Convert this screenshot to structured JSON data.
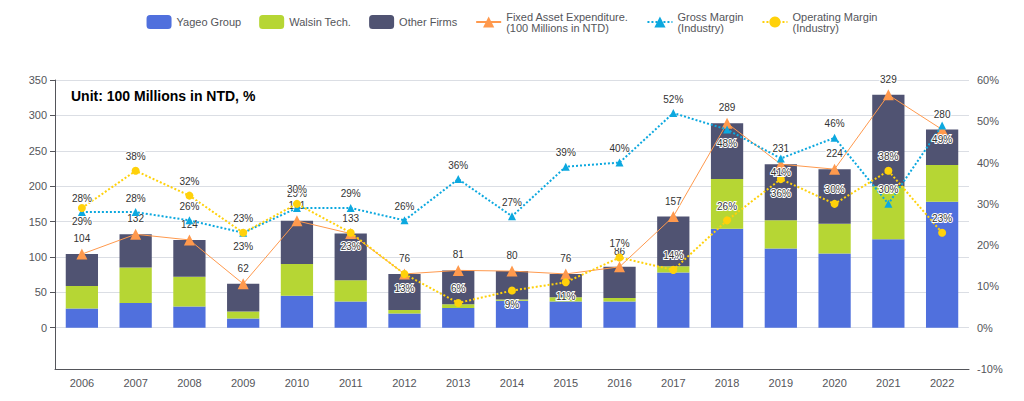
{
  "chart_data": {
    "type": "bar",
    "title": "Unit: 100 Millions in NTD, %",
    "categories": [
      "2006",
      "2007",
      "2008",
      "2009",
      "2010",
      "2011",
      "2012",
      "2013",
      "2014",
      "2015",
      "2016",
      "2017",
      "2018",
      "2019",
      "2020",
      "2021",
      "2022"
    ],
    "stacked": true,
    "grid": true,
    "legend": "top",
    "ylim": [
      -58.33333333333333,
      350
    ],
    "yticks": [
      0,
      50,
      100,
      150,
      200,
      250,
      300,
      350
    ],
    "y2lim": [
      -10,
      60
    ],
    "y2ticks": [
      {
        "value": -10,
        "label": "-10%"
      },
      {
        "value": 0,
        "label": "0%"
      },
      {
        "value": 10,
        "label": "10%"
      },
      {
        "value": 20,
        "label": "20%"
      },
      {
        "value": 30,
        "label": "30%"
      },
      {
        "value": 40,
        "label": "40%"
      },
      {
        "value": 50,
        "label": "50%"
      },
      {
        "value": 60,
        "label": "60%"
      }
    ],
    "series": [
      {
        "name": "Yageo Group",
        "type": "bar",
        "values": [
          27,
          35,
          30,
          13,
          45,
          37,
          20,
          28,
          38,
          37,
          37,
          78,
          140,
          112,
          105,
          125,
          178
        ]
      },
      {
        "name": "Walsin Tech.",
        "type": "bar",
        "values": [
          32,
          50,
          42,
          10,
          45,
          30,
          5,
          5,
          2,
          6,
          5,
          9,
          70,
          40,
          42,
          75,
          52
        ]
      },
      {
        "name": "Other Firms",
        "type": "bar",
        "values": [
          45,
          47,
          52,
          39,
          61,
          66,
          51,
          48,
          40,
          33,
          44,
          70,
          79,
          79,
          77,
          129,
          50
        ]
      },
      {
        "name": "Fixed Asset Expenditure.\n(100 Millions in NTD)",
        "type": "line",
        "marker": "triangle",
        "line_style": "solid",
        "data_labels": true,
        "values": [
          104,
          132,
          124,
          62,
          151,
          133,
          76,
          81,
          80,
          76,
          86,
          157,
          289,
          231,
          224,
          329,
          280
        ]
      },
      {
        "name": "Gross Margin\n(Industry)",
        "type": "line",
        "axis": "y2",
        "marker": "triangle",
        "line_style": "dotted",
        "data_labels": true,
        "values": [
          28,
          28,
          26,
          23,
          29,
          29,
          26,
          36,
          27,
          39,
          40,
          52,
          48,
          41,
          46,
          30,
          49
        ],
        "value_labels": [
          "28%",
          "28%",
          "26%",
          "23%",
          "29%",
          "29%",
          "26%",
          "36%",
          "27%",
          "39%",
          "40%",
          "52%",
          "48%",
          "41%",
          "46%",
          "30%",
          "49%"
        ]
      },
      {
        "name": "Operating Margin\n(Industry)",
        "type": "line",
        "axis": "y2",
        "marker": "circle",
        "line_style": "dotted",
        "data_labels": true,
        "values": [
          29,
          38,
          32,
          23,
          30,
          23,
          13,
          6,
          9,
          11,
          17,
          14,
          26,
          36,
          30,
          38,
          23
        ],
        "value_labels": [
          "29%",
          "38%",
          "32%",
          "23%",
          "30%",
          "23%",
          "13%",
          "6%",
          "9%",
          "11%",
          "17%",
          "14%",
          "26%",
          "36%",
          "30%",
          "38%",
          "23%"
        ]
      }
    ]
  }
}
